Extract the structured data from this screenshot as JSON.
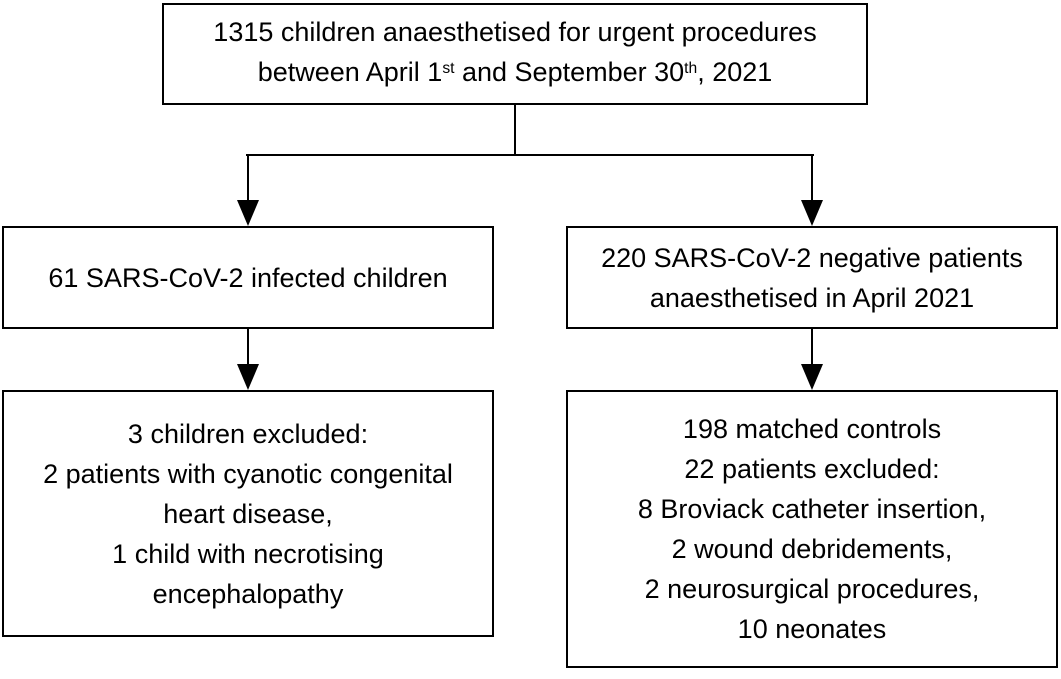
{
  "figure": {
    "type": "study-flow-diagram",
    "colors": {
      "background": "#ffffff",
      "border": "#000000",
      "text": "#000000",
      "arrow": "#000000"
    }
  },
  "boxes": {
    "total": {
      "line1": "1315 children anaesthetised for urgent procedures",
      "line2": {
        "pre": "between April 1",
        "sup1": "st",
        "mid": " and September 30",
        "sup2": "th",
        "post": ", 2021"
      }
    },
    "infected": {
      "line1": "61 SARS-CoV-2 infected children"
    },
    "negative": {
      "lines": [
        "220 SARS-CoV-2 negative patients",
        "anaesthetised in April 2021"
      ]
    },
    "infected_excluded": {
      "lines": [
        "3 children excluded:",
        "2 patients with cyanotic congenital",
        "heart disease,",
        "1 child with necrotising",
        "encephalopathy"
      ]
    },
    "controls": {
      "lines": [
        "198 matched controls",
        "22 patients excluded:",
        "8 Broviack catheter insertion,",
        "2 wound debridements,",
        "2 neurosurgical procedures,",
        "10 neonates"
      ]
    }
  }
}
